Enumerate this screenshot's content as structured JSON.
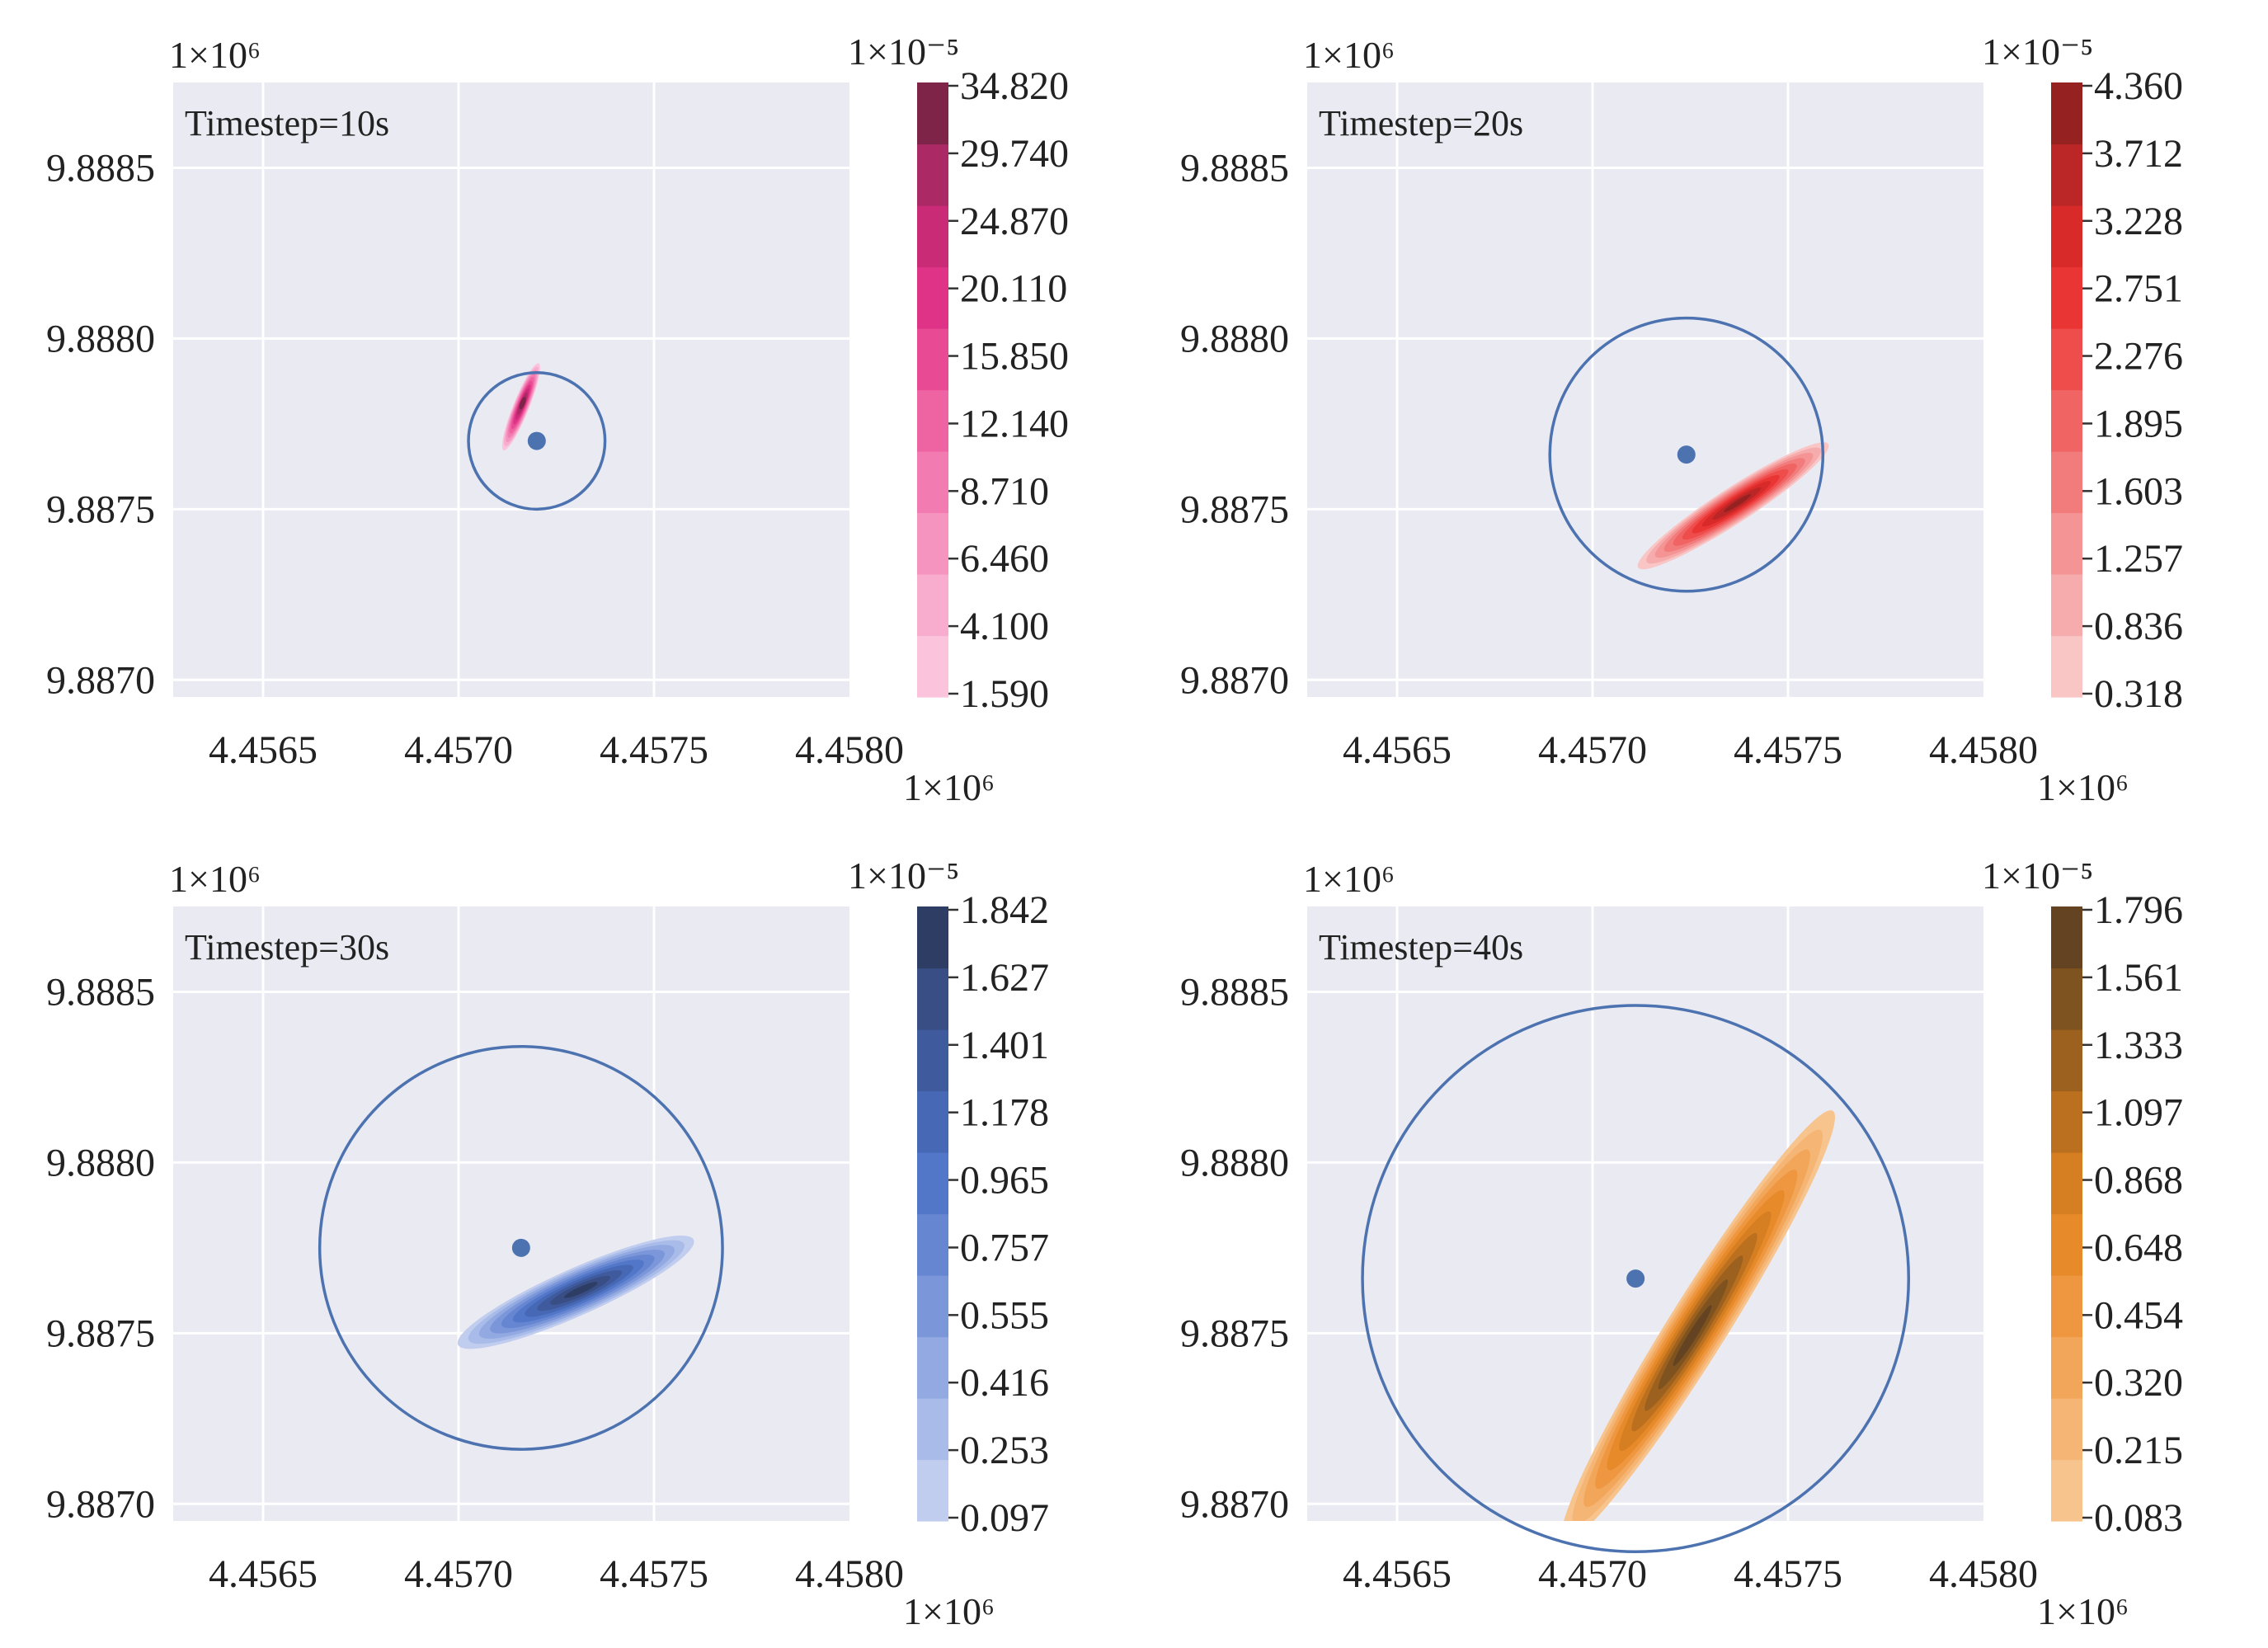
{
  "chart_data": [
    {
      "type": "contour",
      "annotation": "Timestep=10s",
      "x_ticks": [
        "4.4565",
        "4.4570",
        "4.4575",
        "4.4580"
      ],
      "y_ticks": [
        "9.8885",
        "9.8880",
        "9.8875",
        "9.8870"
      ],
      "x_tick_values": [
        4.4565,
        4.457,
        4.4575,
        4.458
      ],
      "y_tick_values": [
        9.8885,
        9.888,
        9.8875,
        9.887
      ],
      "x_scale_label": "1×10⁶",
      "y_scale_label": "1×10⁶",
      "xlim": [
        4.45627,
        4.458
      ],
      "ylim": [
        9.88695,
        9.88875
      ],
      "colorbar_label": "1×10⁻⁵",
      "colorbar_ticks": [
        "34.820",
        "29.740",
        "24.870",
        "20.110",
        "15.850",
        "12.140",
        "8.710",
        "6.460",
        "4.100",
        "1.590"
      ],
      "colorbar_colors": [
        "#fbc4dc",
        "#f8acce",
        "#f594bf",
        "#f27cb1",
        "#ee63a2",
        "#e94a94",
        "#de3386",
        "#c92b76",
        "#ab2a65",
        "#7d2448"
      ],
      "center": {
        "x": 4.4572,
        "y": 9.8877
      },
      "radius": 0.0002,
      "plume": {
        "cx": 4.45716,
        "cy": 9.8878,
        "len": 0.00012,
        "wid": 2e-05,
        "angle_deg": 68,
        "peak_shift": 0.1
      },
      "circle_color": "#4c72b0",
      "point_color": "#4c72b0"
    },
    {
      "type": "contour",
      "annotation": "Timestep=20s",
      "x_ticks": [
        "4.4565",
        "4.4570",
        "4.4575",
        "4.4580"
      ],
      "y_ticks": [
        "9.8885",
        "9.8880",
        "9.8875",
        "9.8870"
      ],
      "x_tick_values": [
        4.4565,
        4.457,
        4.4575,
        4.458
      ],
      "y_tick_values": [
        9.8885,
        9.888,
        9.8875,
        9.887
      ],
      "x_scale_label": "1×10⁶",
      "y_scale_label": "1×10⁶",
      "xlim": [
        4.45627,
        4.458
      ],
      "ylim": [
        9.88695,
        9.88875
      ],
      "colorbar_label": "1×10⁻⁵",
      "colorbar_ticks": [
        "4.360",
        "3.712",
        "3.228",
        "2.751",
        "2.276",
        "1.895",
        "1.603",
        "1.257",
        "0.836",
        "0.318"
      ],
      "colorbar_colors": [
        "#f9c5c5",
        "#f6acac",
        "#f49494",
        "#f27c7c",
        "#f06464",
        "#ef4c4c",
        "#ea3535",
        "#d92a2a",
        "#bb2626",
        "#962121"
      ],
      "center": {
        "x": 4.45724,
        "y": 9.88766
      },
      "radius": 0.0004,
      "plume": {
        "cx": 4.45736,
        "cy": 9.88751,
        "len": 0.00029,
        "wid": 4.5e-05,
        "angle_deg": 33,
        "peak_shift": 0.05
      },
      "circle_color": "#4c72b0",
      "point_color": "#4c72b0"
    },
    {
      "type": "contour",
      "annotation": "Timestep=30s",
      "x_ticks": [
        "4.4565",
        "4.4570",
        "4.4575",
        "4.4580"
      ],
      "y_ticks": [
        "9.8885",
        "9.8880",
        "9.8875",
        "9.8870"
      ],
      "x_tick_values": [
        4.4565,
        4.457,
        4.4575,
        4.458
      ],
      "y_tick_values": [
        9.8885,
        9.888,
        9.8875,
        9.887
      ],
      "x_scale_label": "1×10⁶",
      "y_scale_label": "1×10⁶",
      "xlim": [
        4.45627,
        4.458
      ],
      "ylim": [
        9.88695,
        9.88875
      ],
      "colorbar_label": "1×10⁻⁵",
      "colorbar_ticks": [
        "1.842",
        "1.627",
        "1.401",
        "1.178",
        "0.965",
        "0.757",
        "0.555",
        "0.416",
        "0.253",
        "0.097"
      ],
      "colorbar_colors": [
        "#c0cdee",
        "#a9bbe8",
        "#92a9e1",
        "#7b97da",
        "#6686d2",
        "#5377c8",
        "#4668b5",
        "#3f5b9d",
        "#384e84",
        "#2e3d63"
      ],
      "center": {
        "x": 4.45716,
        "y": 9.88775
      },
      "radius": 0.00059,
      "plume": {
        "cx": 4.4573,
        "cy": 9.88762,
        "len": 0.00033,
        "wid": 6e-05,
        "angle_deg": 24,
        "peak_shift": 0.05
      },
      "circle_color": "#4c72b0",
      "point_color": "#4c72b0"
    },
    {
      "type": "contour",
      "annotation": "Timestep=40s",
      "x_ticks": [
        "4.4565",
        "4.4570",
        "4.4575",
        "4.4580"
      ],
      "y_ticks": [
        "9.8885",
        "9.8880",
        "9.8875",
        "9.8870"
      ],
      "x_tick_values": [
        4.4565,
        4.457,
        4.4575,
        4.458
      ],
      "y_tick_values": [
        9.8885,
        9.888,
        9.8875,
        9.887
      ],
      "x_scale_label": "1×10⁶",
      "y_scale_label": "1×10⁶",
      "xlim": [
        4.45627,
        4.458
      ],
      "ylim": [
        9.88695,
        9.88875
      ],
      "colorbar_label": "1×10⁻⁵",
      "colorbar_ticks": [
        "1.796",
        "1.561",
        "1.333",
        "1.097",
        "0.868",
        "0.648",
        "0.454",
        "0.320",
        "0.215",
        "0.083"
      ],
      "colorbar_colors": [
        "#f7c48e",
        "#f5b574",
        "#f2a65a",
        "#ee9740",
        "#e68a2a",
        "#d67e22",
        "#bb701f",
        "#9d611f",
        "#7f531f",
        "#634321"
      ],
      "center": {
        "x": 4.45711,
        "y": 9.88766
      },
      "radius": 0.0008,
      "plume": {
        "cx": 4.45727,
        "cy": 9.88752,
        "len": 0.00065,
        "wid": 7.5e-05,
        "angle_deg": 58,
        "peak_shift": -0.05
      },
      "circle_color": "#4c72b0",
      "point_color": "#4c72b0"
    }
  ]
}
